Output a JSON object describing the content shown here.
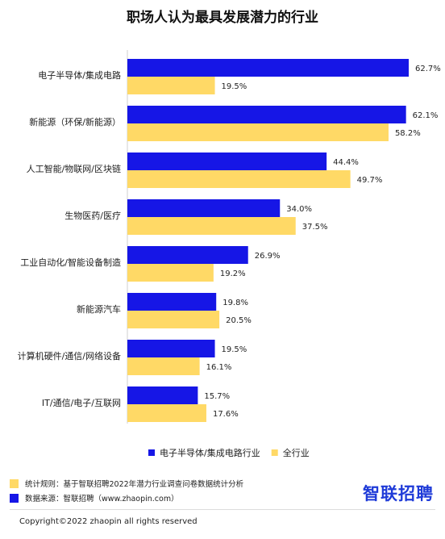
{
  "chart_data": {
    "type": "bar",
    "orientation": "horizontal",
    "title": "职场人认为最具发展潜力的行业",
    "categories": [
      "电子半导体/集成电路",
      "新能源（环保/新能源）",
      "人工智能/物联网/区块链",
      "生物医药/医疗",
      "工业自动化/智能设备制造",
      "新能源汽车",
      "计算机硬件/通信/网络设备",
      "IT/通信/电子/互联网"
    ],
    "series": [
      {
        "name": "电子半导体/集成电路行业",
        "color": "#1616e6",
        "values": [
          62.7,
          62.1,
          44.4,
          34.0,
          26.9,
          19.8,
          19.5,
          15.7
        ]
      },
      {
        "name": "全行业",
        "color": "#ffd966",
        "values": [
          19.5,
          58.2,
          49.7,
          37.5,
          19.2,
          20.5,
          16.1,
          17.6
        ]
      }
    ],
    "value_suffix": "%",
    "xlim": [
      0,
      70
    ],
    "grid": false,
    "legend_position": "bottom-right"
  },
  "footer": {
    "notes": [
      {
        "color": "#ffd966",
        "text": "统计规则：基于智联招聘2022年潜力行业调查问卷数据统计分析"
      },
      {
        "color": "#1616e6",
        "text": "数据来源：智联招聘（www.zhaopin.com）"
      }
    ],
    "brand": "智联招聘",
    "copyright": "Copyright©2022 zhaopin all rights reserved"
  }
}
